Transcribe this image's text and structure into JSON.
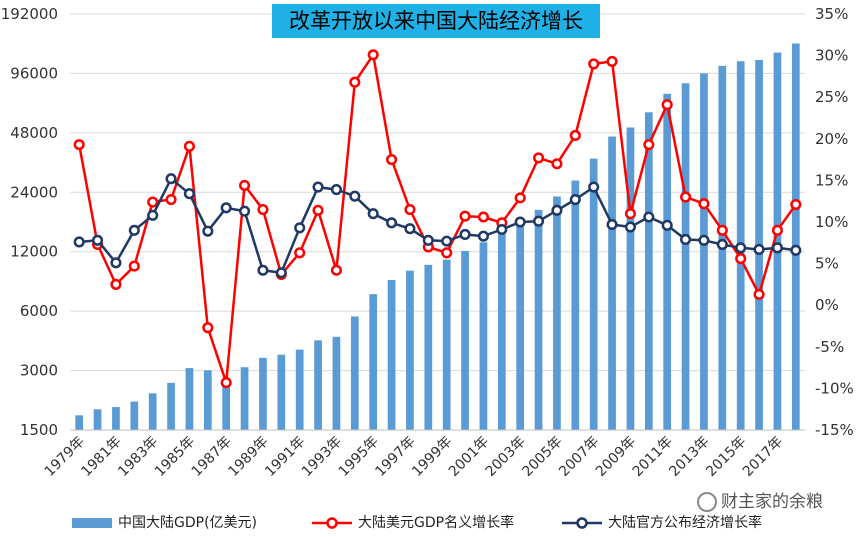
{
  "title": "改革开放以来中国大陆经济增长",
  "watermark": "财主家的余粮",
  "legend": {
    "gdp": "中国大陆GDP(亿美元)",
    "nominal": "大陆美元GDP名义增长率",
    "official": "大陆官方公布经济增长率"
  },
  "colors": {
    "bars": "#5b9bd5",
    "nominal": "#ff0000",
    "official": "#1f3864",
    "title_bg": "#1fb0e6"
  },
  "chart_data": {
    "type": "bar",
    "title": "改革开放以来中国大陆经济增长",
    "categories": [
      1979,
      1980,
      1981,
      1982,
      1983,
      1984,
      1985,
      1986,
      1987,
      1988,
      1989,
      1990,
      1991,
      1992,
      1993,
      1994,
      1995,
      1996,
      1997,
      1998,
      1999,
      2000,
      2001,
      2002,
      2003,
      2004,
      2005,
      2006,
      2007,
      2008,
      2009,
      2010,
      2011,
      2012,
      2013,
      2014,
      2015,
      2016,
      2017,
      2018
    ],
    "x_tick_labels": [
      "1979年",
      "1981年",
      "1983年",
      "1985年",
      "1987年",
      "1989年",
      "1991年",
      "1993年",
      "1995年",
      "1997年",
      "1999年",
      "2001年",
      "2003年",
      "2005年",
      "2007年",
      "2009年",
      "2011年",
      "2013年",
      "2015年",
      "2017年"
    ],
    "y_left": {
      "scale": "log2",
      "ticks": [
        1500,
        3000,
        6000,
        12000,
        24000,
        48000,
        96000,
        192000
      ],
      "range": [
        1500,
        192000
      ]
    },
    "y_right": {
      "ticks": [
        "-15%",
        "-10%",
        "-5%",
        "0%",
        "5%",
        "10%",
        "15%",
        "20%",
        "25%",
        "30%",
        "35%"
      ],
      "range": [
        -15,
        35
      ]
    },
    "grid": "horizontal",
    "legend_position": "bottom",
    "series": [
      {
        "name": "中国大陆GDP(亿美元)",
        "type": "bar",
        "axis": "left",
        "values": [
          1780,
          1910,
          1960,
          2090,
          2300,
          2600,
          3090,
          3010,
          2730,
          3120,
          3480,
          3610,
          3830,
          4270,
          4450,
          5640,
          7320,
          8630,
          9620,
          10290,
          10940,
          12110,
          13390,
          14710,
          16600,
          19550,
          22860,
          27520,
          35520,
          45980,
          51100,
          61010,
          75730,
          85600,
          96070,
          104820,
          110650,
          112330,
          122420,
          136080
        ]
      },
      {
        "name": "大陆美元GDP名义增长率",
        "type": "line",
        "axis": "right",
        "unit": "%",
        "values": [
          19.3,
          7.3,
          2.5,
          4.7,
          12.4,
          12.7,
          19.1,
          -2.7,
          -9.3,
          14.4,
          11.5,
          3.7,
          6.3,
          11.4,
          4.2,
          26.8,
          30.1,
          17.5,
          11.5,
          7.0,
          6.3,
          10.7,
          10.6,
          9.9,
          12.9,
          17.7,
          17.0,
          20.4,
          29.0,
          29.3,
          11.0,
          19.3,
          24.1,
          13.0,
          12.2,
          9.0,
          5.6,
          1.3,
          9.0,
          12.1
        ]
      },
      {
        "name": "大陆官方公布经济增长率",
        "type": "line",
        "axis": "right",
        "unit": "%",
        "values": [
          7.6,
          7.8,
          5.1,
          9.0,
          10.8,
          15.2,
          13.4,
          8.9,
          11.7,
          11.3,
          4.2,
          3.9,
          9.3,
          14.2,
          13.9,
          13.1,
          11.0,
          9.9,
          9.2,
          7.8,
          7.7,
          8.5,
          8.3,
          9.1,
          10.0,
          10.1,
          11.4,
          12.7,
          14.2,
          9.7,
          9.4,
          10.6,
          9.6,
          7.9,
          7.8,
          7.3,
          6.9,
          6.7,
          6.9,
          6.6
        ]
      }
    ]
  }
}
